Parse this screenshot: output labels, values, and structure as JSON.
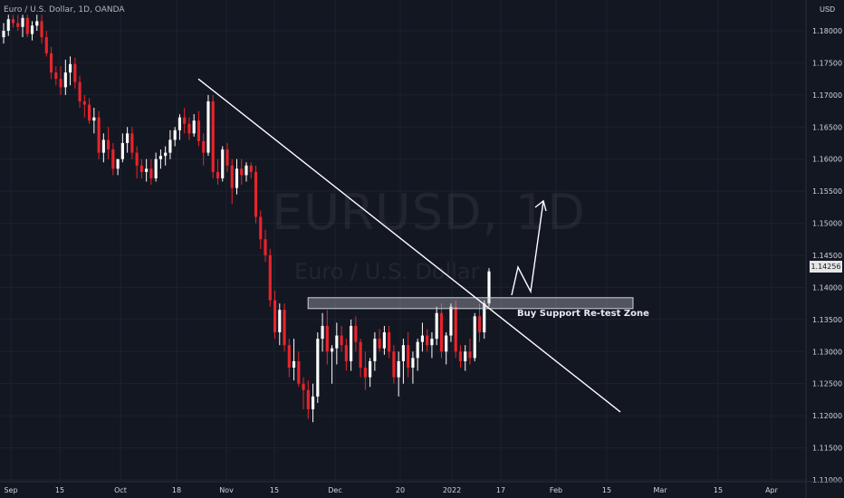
{
  "header": {
    "symbol_line": "Euro / U.S. Dollar, 1D, OANDA"
  },
  "watermark": {
    "symbol": "EURUSD, 1D",
    "description": "Euro / U.S. Dollar"
  },
  "price_axis": {
    "currency": "USD",
    "ticks": [
      "1.18000",
      "1.17500",
      "1.17000",
      "1.16500",
      "1.16000",
      "1.15500",
      "1.15000",
      "1.14500",
      "1.14000",
      "1.13500",
      "1.13000",
      "1.12500",
      "1.12000",
      "1.11500",
      "1.11000"
    ],
    "last_price": "1.14256"
  },
  "time_axis": {
    "ticks": [
      "Sep",
      "15",
      "Oct",
      "18",
      "Nov",
      "15",
      "Dec",
      "20",
      "2022",
      "17",
      "Feb",
      "15",
      "Mar",
      "15",
      "Apr"
    ]
  },
  "annotation": {
    "zone_label": "Buy Support Re-test Zone"
  },
  "colors": {
    "background": "#131722",
    "up": "#ffffff",
    "down": "#e8242c",
    "grid": "#1e222d",
    "axis_text": "#d1d4dc"
  },
  "chart_data": {
    "type": "candlestick",
    "title": "Euro / U.S. Dollar, 1D, OANDA",
    "ylim": [
      1.11,
      1.1825
    ],
    "candles": [
      [
        1.179,
        1.1812,
        1.178,
        1.18
      ],
      [
        1.18,
        1.1825,
        1.1792,
        1.1818
      ],
      [
        1.1818,
        1.1825,
        1.1805,
        1.1812
      ],
      [
        1.1812,
        1.1825,
        1.18,
        1.1806
      ],
      [
        1.1806,
        1.1825,
        1.179,
        1.182
      ],
      [
        1.182,
        1.1825,
        1.179,
        1.1795
      ],
      [
        1.1795,
        1.1815,
        1.1785,
        1.1808
      ],
      [
        1.1808,
        1.1825,
        1.18,
        1.1815
      ],
      [
        1.1815,
        1.1825,
        1.178,
        1.179
      ],
      [
        1.179,
        1.18,
        1.176,
        1.1765
      ],
      [
        1.1765,
        1.1775,
        1.1725,
        1.1735
      ],
      [
        1.1735,
        1.1745,
        1.1715,
        1.1725
      ],
      [
        1.1725,
        1.1745,
        1.17,
        1.1712
      ],
      [
        1.1712,
        1.1755,
        1.17,
        1.1735
      ],
      [
        1.1735,
        1.176,
        1.1715,
        1.1748
      ],
      [
        1.1748,
        1.1758,
        1.171,
        1.172
      ],
      [
        1.172,
        1.173,
        1.168,
        1.169
      ],
      [
        1.169,
        1.17,
        1.1665,
        1.1685
      ],
      [
        1.1685,
        1.1695,
        1.1655,
        1.166
      ],
      [
        1.166,
        1.168,
        1.164,
        1.1665
      ],
      [
        1.1665,
        1.1675,
        1.16,
        1.161
      ],
      [
        1.161,
        1.164,
        1.1595,
        1.163
      ],
      [
        1.163,
        1.165,
        1.16,
        1.1615
      ],
      [
        1.1615,
        1.1625,
        1.1575,
        1.1585
      ],
      [
        1.1585,
        1.16,
        1.1575,
        1.16
      ],
      [
        1.16,
        1.164,
        1.1595,
        1.1625
      ],
      [
        1.1625,
        1.165,
        1.161,
        1.164
      ],
      [
        1.164,
        1.165,
        1.16,
        1.161
      ],
      [
        1.161,
        1.162,
        1.157,
        1.159
      ],
      [
        1.159,
        1.16,
        1.157,
        1.158
      ],
      [
        1.158,
        1.16,
        1.1565,
        1.1585
      ],
      [
        1.1585,
        1.16,
        1.156,
        1.157
      ],
      [
        1.157,
        1.161,
        1.1565,
        1.16
      ],
      [
        1.16,
        1.1615,
        1.1585,
        1.1605
      ],
      [
        1.1605,
        1.162,
        1.159,
        1.161
      ],
      [
        1.161,
        1.1645,
        1.16,
        1.163
      ],
      [
        1.163,
        1.165,
        1.162,
        1.1645
      ],
      [
        1.1645,
        1.167,
        1.163,
        1.1665
      ],
      [
        1.1665,
        1.168,
        1.164,
        1.1655
      ],
      [
        1.1655,
        1.1665,
        1.163,
        1.164
      ],
      [
        1.164,
        1.167,
        1.1635,
        1.166
      ],
      [
        1.166,
        1.1675,
        1.162,
        1.1628
      ],
      [
        1.1628,
        1.164,
        1.159,
        1.161
      ],
      [
        1.161,
        1.17,
        1.1605,
        1.169
      ],
      [
        1.169,
        1.17,
        1.157,
        1.158
      ],
      [
        1.158,
        1.16,
        1.156,
        1.157
      ],
      [
        1.157,
        1.162,
        1.1565,
        1.1615
      ],
      [
        1.1615,
        1.1625,
        1.158,
        1.159
      ],
      [
        1.159,
        1.16,
        1.153,
        1.1555
      ],
      [
        1.1555,
        1.16,
        1.1545,
        1.1585
      ],
      [
        1.1585,
        1.16,
        1.156,
        1.1575
      ],
      [
        1.1575,
        1.1595,
        1.1565,
        1.159
      ],
      [
        1.159,
        1.1595,
        1.157,
        1.158
      ],
      [
        1.158,
        1.159,
        1.15,
        1.151
      ],
      [
        1.151,
        1.152,
        1.146,
        1.1475
      ],
      [
        1.1475,
        1.149,
        1.144,
        1.145
      ],
      [
        1.145,
        1.146,
        1.137,
        1.138
      ],
      [
        1.138,
        1.1395,
        1.132,
        1.133
      ],
      [
        1.133,
        1.1375,
        1.131,
        1.1365
      ],
      [
        1.1365,
        1.1375,
        1.13,
        1.131
      ],
      [
        1.131,
        1.132,
        1.126,
        1.1275
      ],
      [
        1.1275,
        1.132,
        1.1255,
        1.1285
      ],
      [
        1.1285,
        1.13,
        1.1245,
        1.125
      ],
      [
        1.125,
        1.126,
        1.121,
        1.124
      ],
      [
        1.124,
        1.1255,
        1.1195,
        1.121
      ],
      [
        1.121,
        1.125,
        1.119,
        1.123
      ],
      [
        1.123,
        1.133,
        1.122,
        1.132
      ],
      [
        1.132,
        1.136,
        1.13,
        1.134
      ],
      [
        1.134,
        1.1365,
        1.128,
        1.13
      ],
      [
        1.13,
        1.131,
        1.125,
        1.1305
      ],
      [
        1.1305,
        1.1345,
        1.128,
        1.1325
      ],
      [
        1.1325,
        1.134,
        1.13,
        1.131
      ],
      [
        1.131,
        1.132,
        1.127,
        1.1285
      ],
      [
        1.1285,
        1.135,
        1.127,
        1.134
      ],
      [
        1.134,
        1.1355,
        1.13,
        1.1315
      ],
      [
        1.1315,
        1.132,
        1.126,
        1.1275
      ],
      [
        1.1275,
        1.13,
        1.124,
        1.126
      ],
      [
        1.126,
        1.129,
        1.1245,
        1.1285
      ],
      [
        1.1285,
        1.133,
        1.127,
        1.132
      ],
      [
        1.132,
        1.1335,
        1.13,
        1.1305
      ],
      [
        1.1305,
        1.134,
        1.1295,
        1.133
      ],
      [
        1.133,
        1.134,
        1.129,
        1.13
      ],
      [
        1.13,
        1.131,
        1.125,
        1.126
      ],
      [
        1.126,
        1.13,
        1.123,
        1.1285
      ],
      [
        1.1285,
        1.132,
        1.125,
        1.131
      ],
      [
        1.131,
        1.133,
        1.126,
        1.1275
      ],
      [
        1.1275,
        1.13,
        1.125,
        1.129
      ],
      [
        1.129,
        1.132,
        1.127,
        1.1315
      ],
      [
        1.1315,
        1.1345,
        1.13,
        1.1325
      ],
      [
        1.1325,
        1.1335,
        1.13,
        1.131
      ],
      [
        1.131,
        1.133,
        1.129,
        1.132
      ],
      [
        1.132,
        1.137,
        1.131,
        1.136
      ],
      [
        1.136,
        1.1375,
        1.129,
        1.13
      ],
      [
        1.13,
        1.133,
        1.128,
        1.1325
      ],
      [
        1.1325,
        1.1375,
        1.1315,
        1.137
      ],
      [
        1.137,
        1.138,
        1.129,
        1.13
      ],
      [
        1.13,
        1.131,
        1.1275,
        1.1285
      ],
      [
        1.1285,
        1.131,
        1.127,
        1.13
      ],
      [
        1.13,
        1.132,
        1.128,
        1.129
      ],
      [
        1.129,
        1.136,
        1.1285,
        1.1355
      ],
      [
        1.1355,
        1.1375,
        1.1315,
        1.133
      ],
      [
        1.133,
        1.138,
        1.132,
        1.1375
      ],
      [
        1.1375,
        1.143,
        1.137,
        1.1425
      ]
    ],
    "trendline": {
      "from": [
        0.235,
        1.1725
      ],
      "to": [
        0.735,
        1.1206
      ]
    },
    "support_zone": {
      "top": 1.1384,
      "bottom": 1.1367,
      "x_from": 0.365,
      "x_to": 0.75
    }
  }
}
